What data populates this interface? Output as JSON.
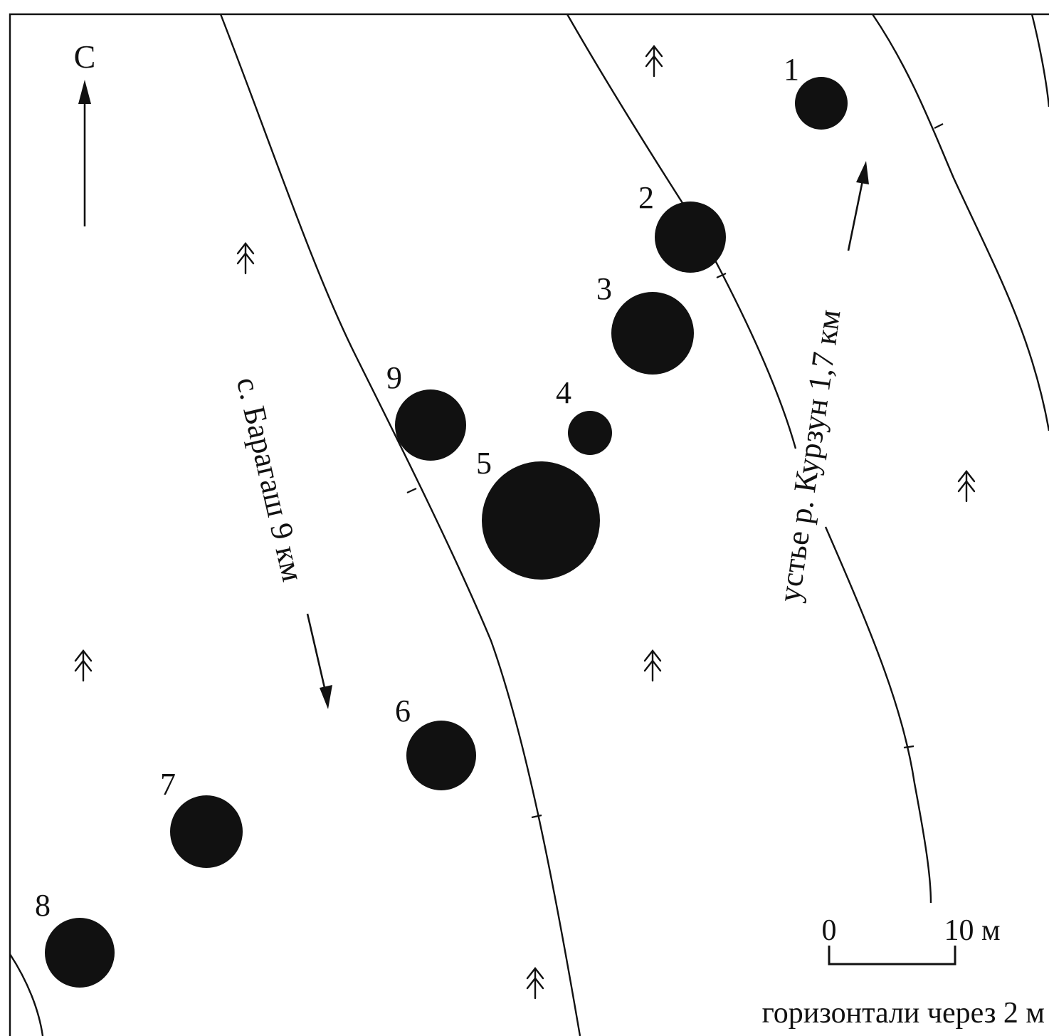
{
  "north_label": "С",
  "mounds": [
    {
      "label": "1"
    },
    {
      "label": "2"
    },
    {
      "label": "3"
    },
    {
      "label": "4"
    },
    {
      "label": "5"
    },
    {
      "label": "6"
    },
    {
      "label": "7"
    },
    {
      "label": "8"
    },
    {
      "label": "9"
    }
  ],
  "routes": {
    "baragash": "с. Барагаш 9 км",
    "kurzun": "устье р. Курзун 1,7 км"
  },
  "scale": {
    "start": "0",
    "end": "10 м"
  },
  "caption": "горизонтали через 2 м",
  "colors": {
    "ink": "#111111",
    "paper": "#ffffff"
  },
  "icons": [
    "north-arrow-icon",
    "vegetation-icon",
    "direction-arrow-icon"
  ]
}
